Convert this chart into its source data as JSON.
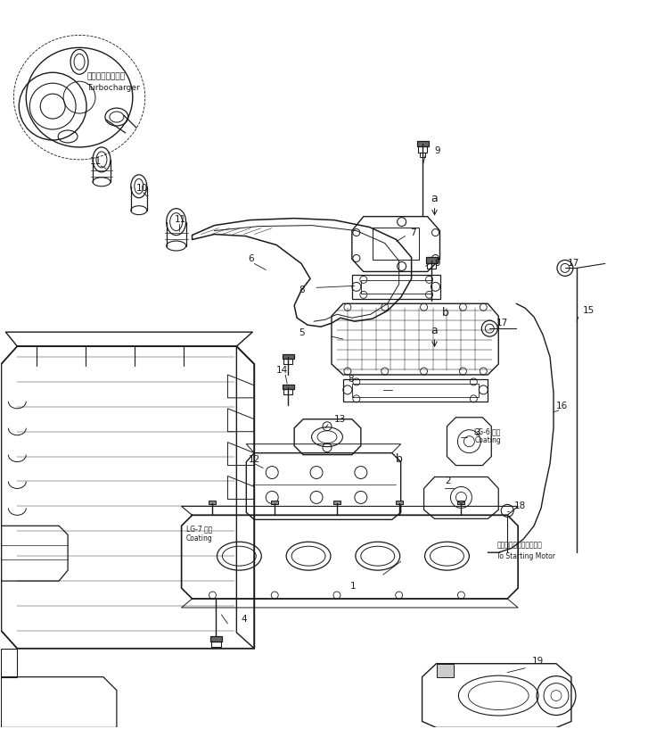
{
  "bg_color": "#ffffff",
  "line_color": "#1a1a1a",
  "fig_width": 7.27,
  "fig_height": 8.17,
  "dpi": 100,
  "annotations": {
    "turbocharger_jp": "ターボチャージャ",
    "turbocharger_en": "Turbocharger",
    "lg6_line1": "LG-6 途布",
    "lg6_line2": "Coating",
    "lg7_line1": "LG-7 途布",
    "lg7_line2": "Coating",
    "starting_motor_jp": "スターティングモータヘ",
    "starting_motor_en": "To Starting Motor"
  }
}
